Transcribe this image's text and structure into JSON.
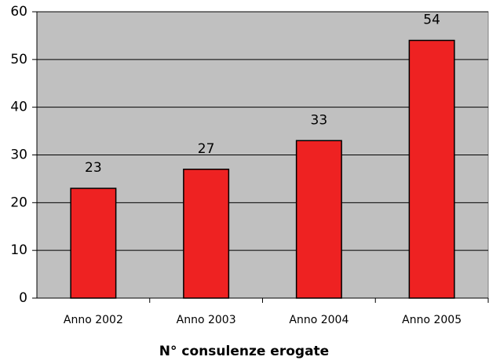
{
  "chart_data": {
    "type": "bar",
    "categories": [
      "Anno 2002",
      "Anno 2003",
      "Anno 2004",
      "Anno 2005"
    ],
    "values": [
      23,
      27,
      33,
      54
    ],
    "color": "#ee2222",
    "ylim": [
      0,
      60
    ],
    "yticks": [
      0,
      10,
      20,
      30,
      40,
      50,
      60
    ],
    "grid": true,
    "xlabel": "N° consulenze erogate"
  }
}
